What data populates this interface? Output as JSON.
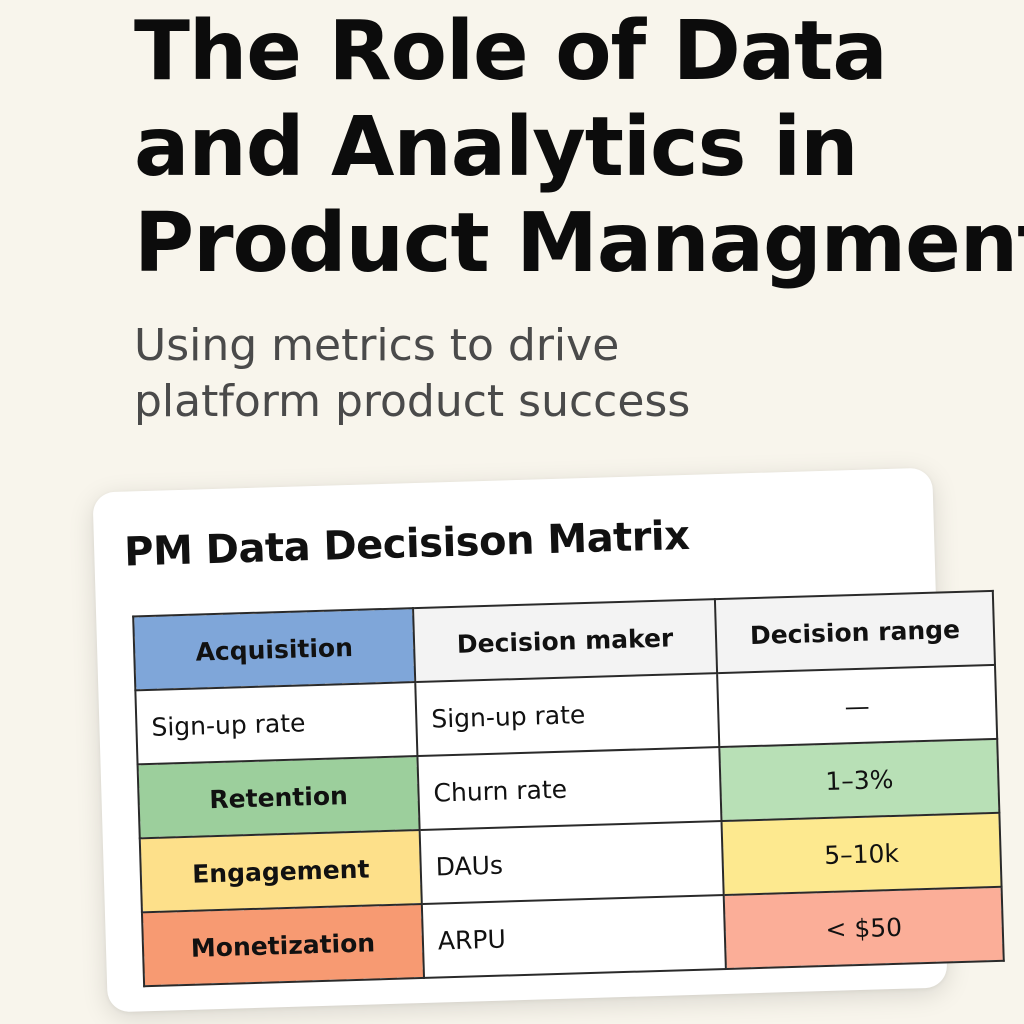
{
  "title_lines": [
    "The Role of Data",
    "and Analytics in",
    "Product Managment"
  ],
  "subtitle_lines": [
    "Using metrics to drive",
    "platform product success"
  ],
  "card": {
    "title": "PM Data Decisison Matrix"
  },
  "table": {
    "rows": [
      [
        "Acquisition",
        "Decision maker",
        "Decision range"
      ],
      [
        "Sign-up rate",
        "Sign-up rate",
        "—"
      ],
      [
        "Retention",
        "Churn rate",
        "1–3%"
      ],
      [
        "Engagement",
        "DAUs",
        "5–10k"
      ],
      [
        "Monetization",
        "ARPU",
        "< $50"
      ]
    ]
  },
  "colors": {
    "acquisition": "#7fa6d9",
    "retention": "#9ccf9c",
    "engagement": "#fde08a",
    "monetization": "#f79a72"
  }
}
